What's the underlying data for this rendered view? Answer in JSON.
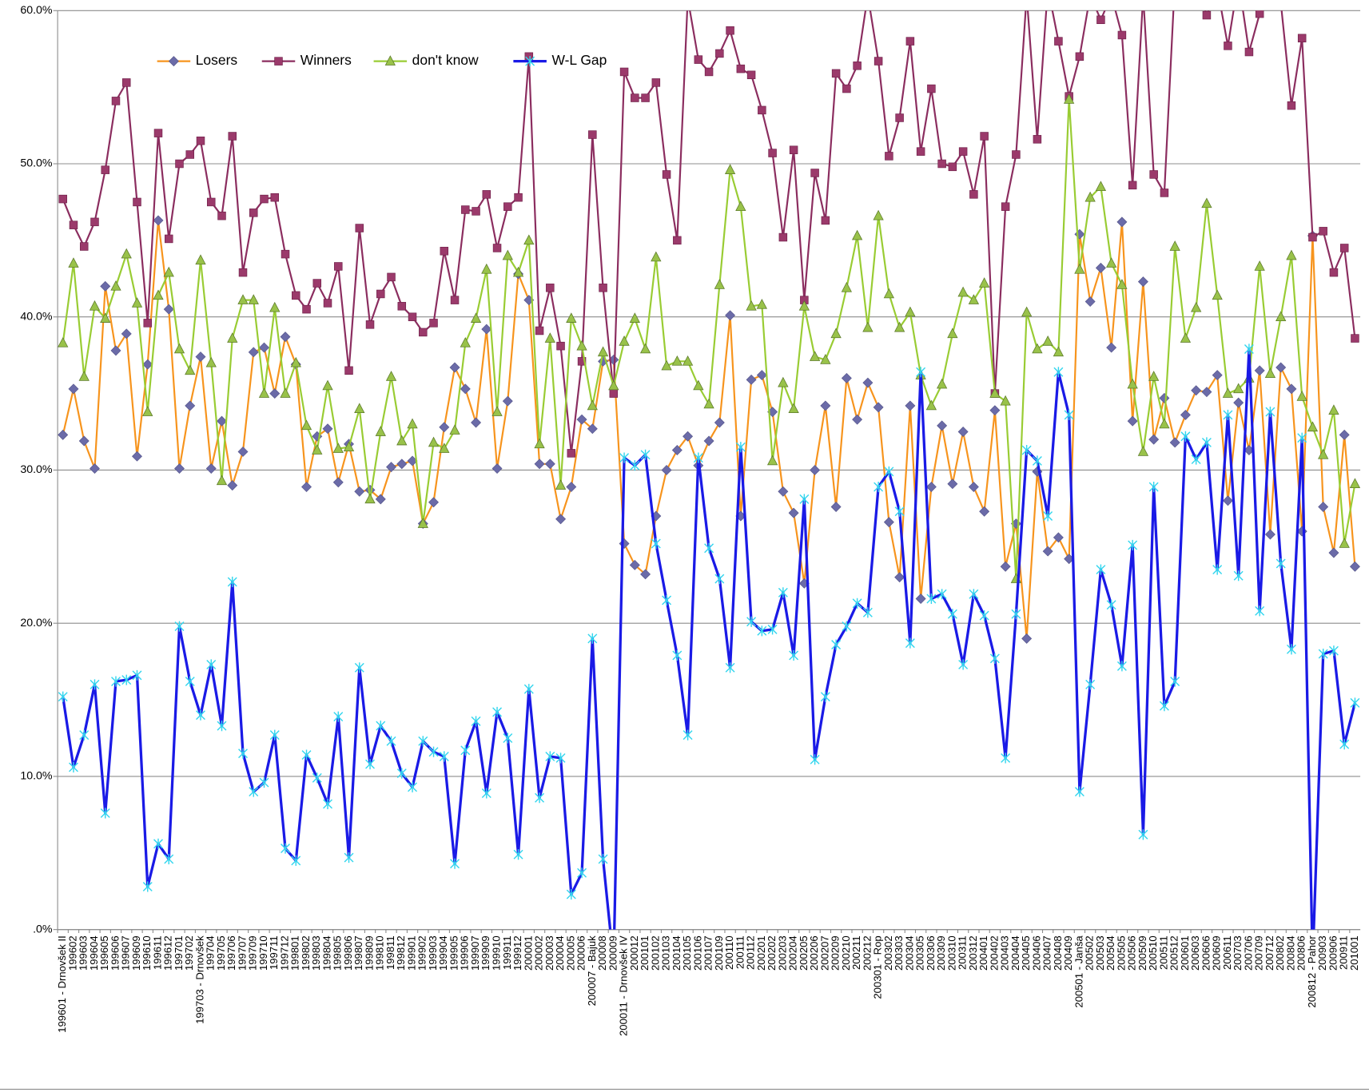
{
  "chart_data": {
    "type": "line",
    "categories": [
      "199601 - Drnovšek II",
      "199602",
      "199603",
      "199604",
      "199605",
      "199606",
      "199607",
      "199609",
      "199610",
      "199611",
      "199612",
      "199701",
      "199702",
      "199703 - Drnovšek",
      "199704",
      "199705",
      "199706",
      "199707",
      "199709",
      "199710",
      "199711",
      "199712",
      "199801",
      "199802",
      "199803",
      "199804",
      "199805",
      "199806",
      "199807",
      "199809",
      "199810",
      "199811",
      "199812",
      "199901",
      "199902",
      "199903",
      "199904",
      "199905",
      "199906",
      "199907",
      "199909",
      "199910",
      "199911",
      "199912",
      "200001",
      "200002",
      "200003",
      "200004",
      "200005",
      "200006",
      "200007 - Bajuk",
      "200008",
      "200009",
      "200011 - Drnovšek IV",
      "200012",
      "200101",
      "200102",
      "200103",
      "200104",
      "200105",
      "200106",
      "200107",
      "200109",
      "200110",
      "200111",
      "200112",
      "200201",
      "200202",
      "200203",
      "200204",
      "200205",
      "200206",
      "200207",
      "200209",
      "200210",
      "200211",
      "200212",
      "200301 - Rop",
      "200302",
      "200303",
      "200304",
      "200305",
      "200306",
      "200309",
      "200310",
      "200311",
      "200312",
      "200401",
      "200402",
      "200403",
      "200404",
      "200405",
      "200406",
      "200407",
      "200408",
      "200409",
      "200501 - Janša",
      "200502",
      "200503",
      "200504",
      "200505",
      "200506",
      "200509",
      "200510",
      "200511",
      "200512",
      "200601",
      "200603",
      "200606",
      "200609",
      "200611",
      "200703",
      "200706",
      "200709",
      "200712",
      "200802",
      "200804",
      "200806",
      "200812 - Pahor",
      "200903",
      "200906",
      "200911",
      "201001"
    ],
    "series": [
      {
        "name": "Losers",
        "color": "#f7941d",
        "marker": "diamond",
        "marker_color": "#6b6ba8",
        "values": [
          32.3,
          35.3,
          31.9,
          30.1,
          42.0,
          37.8,
          38.9,
          30.9,
          36.9,
          46.3,
          40.5,
          30.1,
          34.2,
          37.4,
          30.1,
          33.2,
          29.0,
          31.2,
          37.7,
          38.0,
          35.0,
          38.7,
          36.9,
          28.9,
          32.2,
          32.7,
          29.2,
          31.7,
          28.6,
          28.7,
          28.1,
          30.2,
          30.4,
          30.6,
          26.5,
          27.9,
          32.8,
          36.7,
          35.3,
          33.1,
          39.2,
          30.1,
          34.5,
          42.8,
          41.1,
          30.4,
          30.4,
          26.8,
          28.9,
          33.3,
          32.7,
          37.1,
          37.2,
          25.2,
          23.8,
          23.2,
          27.0,
          30.0,
          31.3,
          32.2,
          30.3,
          31.9,
          33.1,
          40.1,
          27.0,
          35.9,
          36.2,
          33.8,
          28.6,
          27.2,
          22.6,
          30.0,
          34.2,
          27.6,
          36.0,
          33.3,
          35.7,
          34.1,
          26.6,
          23.0,
          34.2,
          21.6,
          28.9,
          32.9,
          29.1,
          32.5,
          28.9,
          27.3,
          33.9,
          23.7,
          26.5,
          19.0,
          29.9,
          24.7,
          25.6,
          24.2,
          45.4,
          41.0,
          43.2,
          38.0,
          46.2,
          33.2,
          42.3,
          32.0,
          34.7,
          31.8,
          33.6,
          35.2,
          35.1,
          36.2,
          28.0,
          34.4,
          31.3,
          36.5,
          25.8,
          36.7,
          35.3,
          26.0,
          45.3,
          27.6,
          24.6,
          32.3,
          23.7
        ]
      },
      {
        "name": "Winners",
        "color": "#8b2d5f",
        "marker": "square",
        "marker_color": "#9b3a6b",
        "values": [
          47.7,
          46.0,
          44.6,
          46.2,
          49.6,
          54.1,
          55.3,
          47.5,
          39.6,
          52.0,
          45.1,
          50.0,
          50.6,
          51.5,
          47.5,
          46.6,
          51.8,
          42.9,
          46.8,
          47.7,
          47.8,
          44.1,
          41.4,
          40.5,
          42.2,
          40.9,
          43.3,
          36.5,
          45.8,
          39.5,
          41.5,
          42.6,
          40.7,
          40.0,
          39.0,
          39.6,
          44.3,
          41.1,
          47.0,
          46.9,
          48.0,
          44.5,
          47.2,
          47.8,
          57.0,
          39.1,
          41.9,
          38.1,
          31.1,
          37.1,
          51.9,
          41.9,
          35.0,
          56.0,
          54.3,
          54.3,
          55.3,
          49.3,
          45.0,
          60.8,
          56.8,
          56.0,
          57.2,
          58.7,
          56.2,
          55.8,
          53.5,
          50.7,
          45.2,
          50.9,
          41.1,
          49.4,
          46.3,
          55.9,
          54.9,
          56.4,
          61.0,
          56.7,
          50.5,
          53.0,
          58.0,
          50.8,
          54.9,
          50.0,
          49.8,
          50.8,
          48.0,
          51.8,
          35.0,
          47.2,
          50.6,
          61.0,
          51.6,
          61.5,
          58.0,
          54.4,
          57.0,
          61.0,
          59.4,
          61.0,
          58.4,
          48.6,
          61.0,
          49.3,
          48.1,
          62.0,
          61.0,
          62.0,
          59.7,
          61.5,
          57.7,
          62.0,
          57.3,
          59.8,
          61.0,
          60.5,
          53.8,
          58.2,
          45.2,
          45.6,
          42.9,
          44.5,
          38.6
        ]
      },
      {
        "name": "don't know",
        "color": "#99cc33",
        "marker": "triangle",
        "marker_color": "#99c24a",
        "values": [
          38.3,
          43.5,
          36.1,
          40.7,
          39.9,
          42.0,
          44.1,
          40.9,
          33.8,
          41.4,
          42.9,
          37.9,
          36.5,
          43.7,
          37.0,
          29.3,
          38.6,
          41.1,
          41.1,
          35.0,
          40.6,
          35.0,
          37.0,
          32.9,
          31.3,
          35.5,
          31.4,
          31.5,
          34.0,
          28.1,
          32.5,
          36.1,
          31.9,
          33.0,
          26.5,
          31.8,
          31.4,
          32.6,
          38.3,
          39.9,
          43.1,
          33.8,
          44.0,
          42.9,
          45.0,
          31.7,
          38.6,
          29.0,
          39.9,
          38.1,
          34.2,
          37.7,
          35.5,
          38.4,
          39.9,
          37.9,
          43.9,
          36.8,
          37.1,
          37.1,
          35.5,
          34.3,
          42.1,
          49.6,
          47.2,
          40.7,
          40.8,
          30.6,
          35.7,
          34.0,
          40.7,
          37.4,
          37.2,
          38.9,
          41.9,
          45.3,
          39.3,
          46.6,
          41.5,
          39.3,
          40.3,
          36.2,
          34.2,
          35.6,
          38.9,
          41.6,
          41.1,
          42.2,
          35.0,
          34.5,
          22.9,
          40.3,
          37.9,
          38.4,
          37.7,
          54.2,
          43.1,
          47.8,
          48.5,
          43.5,
          42.1,
          35.6,
          31.2,
          36.1,
          33.0,
          44.6,
          38.6,
          40.6,
          47.4,
          41.4,
          35.0,
          35.3,
          36.0,
          43.3,
          36.3,
          40.0,
          44.0,
          34.8,
          32.8,
          31.0,
          33.9,
          25.2,
          29.1
        ]
      },
      {
        "name": "W-L Gap",
        "color": "#1a1ae6",
        "marker": "x",
        "marker_color": "#33d6ee",
        "values": [
          15.2,
          10.6,
          12.7,
          16.0,
          7.6,
          16.2,
          16.3,
          16.6,
          2.8,
          5.6,
          4.6,
          19.8,
          16.2,
          14.0,
          17.3,
          13.3,
          22.7,
          11.5,
          9.0,
          9.6,
          12.7,
          5.3,
          4.5,
          11.4,
          9.9,
          8.2,
          13.9,
          4.7,
          17.1,
          10.8,
          13.3,
          12.3,
          10.2,
          9.3,
          12.3,
          11.6,
          11.3,
          4.3,
          11.7,
          13.6,
          8.9,
          14.2,
          12.5,
          4.9,
          15.7,
          8.6,
          11.3,
          11.2,
          2.3,
          3.7,
          19.0,
          4.6,
          -2.2,
          30.8,
          30.3,
          31.0,
          25.2,
          21.5,
          17.9,
          12.7,
          30.8,
          24.9,
          22.9,
          17.1,
          31.5,
          20.1,
          19.5,
          19.6,
          22.0,
          17.9,
          28.1,
          11.1,
          15.2,
          18.6,
          19.8,
          21.3,
          20.7,
          28.9,
          29.9,
          27.3,
          18.7,
          36.4,
          21.6,
          21.9,
          20.6,
          17.3,
          21.9,
          20.5,
          17.7,
          11.2,
          20.6,
          31.3,
          30.6,
          27.0,
          36.4,
          33.6,
          9.0,
          16.0,
          23.5,
          21.2,
          17.2,
          25.1,
          6.2,
          28.9,
          14.6,
          16.2,
          32.2,
          30.7,
          31.8,
          23.5,
          33.6,
          23.1,
          37.9,
          20.8,
          33.8,
          23.9,
          18.3,
          32.1,
          -2.2,
          18.0,
          18.2,
          12.1,
          14.8
        ]
      }
    ],
    "ylim": [
      0,
      60
    ],
    "yticks": [
      {
        "value": 0,
        "label": ".0%"
      },
      {
        "value": 10,
        "label": "10.0%"
      },
      {
        "value": 20,
        "label": "20.0%"
      },
      {
        "value": 30,
        "label": "30.0%"
      },
      {
        "value": 40,
        "label": "40.0%"
      },
      {
        "value": 50,
        "label": "50.0%"
      },
      {
        "value": 60,
        "label": "60.0%"
      }
    ],
    "grid": true,
    "legend": "top-left"
  }
}
